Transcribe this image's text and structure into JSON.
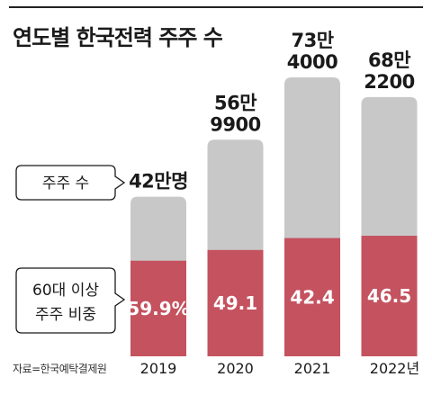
{
  "title": "연도별 한국전력 주주 수",
  "source": "자료=한국예탁결제원",
  "callouts": {
    "shareholders": "주주 수",
    "over60_line1": "60대 이상",
    "over60_line2": "주주 비중"
  },
  "colors": {
    "total": "#c8c8c8",
    "over60": "#c4525f",
    "share_label": "#ffffff"
  },
  "chart_data": {
    "type": "bar",
    "categories": [
      "2019",
      "2020",
      "2021",
      "2022"
    ],
    "category_labels": [
      "2019",
      "2020",
      "2021",
      "2022년"
    ],
    "series": [
      {
        "name": "주주 수",
        "values": [
          420000,
          569900,
          734000,
          682200
        ],
        "labels": [
          [
            "42만명"
          ],
          [
            "56만",
            "9900"
          ],
          [
            "73만",
            "4000"
          ],
          [
            "68만",
            "2200"
          ]
        ]
      },
      {
        "name": "60대 이상 주주 비중",
        "values": [
          59.9,
          49.1,
          42.4,
          46.5
        ],
        "labels": [
          "59.9%",
          "49.1",
          "42.4",
          "46.5"
        ]
      }
    ],
    "ylim": [
      0,
      734000
    ],
    "grid": false
  }
}
